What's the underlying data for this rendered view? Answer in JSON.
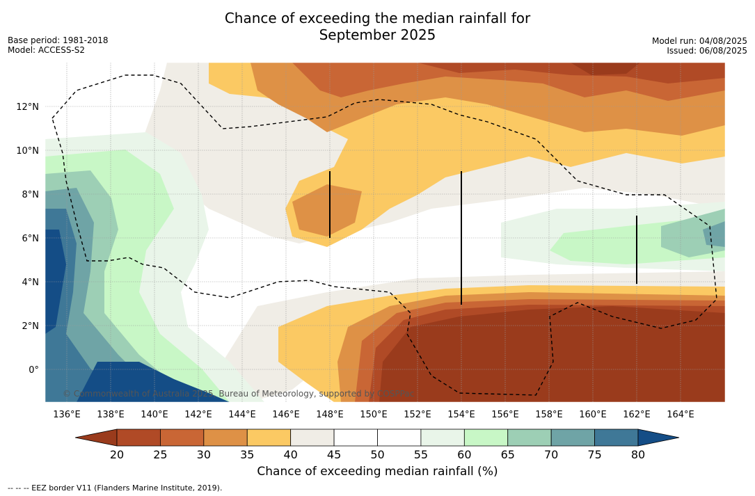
{
  "header": {
    "title_line1": "Chance of exceeding the median rainfall for",
    "title_line2": "September 2025",
    "base_period": "Base period: 1981-2018",
    "model": "Model: ACCESS-S2",
    "model_run": "Model run: 04/08/2025",
    "issued": "Issued: 06/08/2025"
  },
  "map": {
    "x_ticks": [
      "136°E",
      "138°E",
      "140°E",
      "142°E",
      "144°E",
      "146°E",
      "148°E",
      "150°E",
      "152°E",
      "154°E",
      "156°E",
      "158°E",
      "160°E",
      "162°E",
      "164°E"
    ],
    "y_ticks": [
      "12°N",
      "10°N",
      "8°N",
      "6°N",
      "4°N",
      "2°N",
      "0°"
    ],
    "copyright": "© Commonwealth of Australia 2025, Bureau of Meteorology, supported by COSPPac"
  },
  "colorbar": {
    "ticks": [
      "20",
      "25",
      "30",
      "35",
      "40",
      "45",
      "50",
      "55",
      "60",
      "65",
      "70",
      "75",
      "80"
    ],
    "colors": [
      "#9a3b1c",
      "#b04a26",
      "#c96635",
      "#de9146",
      "#fbc963",
      "#f0ede6",
      "#ffffff",
      "#ffffff",
      "#e9f5e9",
      "#c8f7c6",
      "#9dcfb5",
      "#6fa4a6",
      "#3f7897",
      "#144d86"
    ],
    "label": "Chance of exceeding median rainfall (%)"
  },
  "legend": {
    "eez_note": "--  --  -- EEZ border V11 (Flanders Marine Institute, 2019)."
  }
}
